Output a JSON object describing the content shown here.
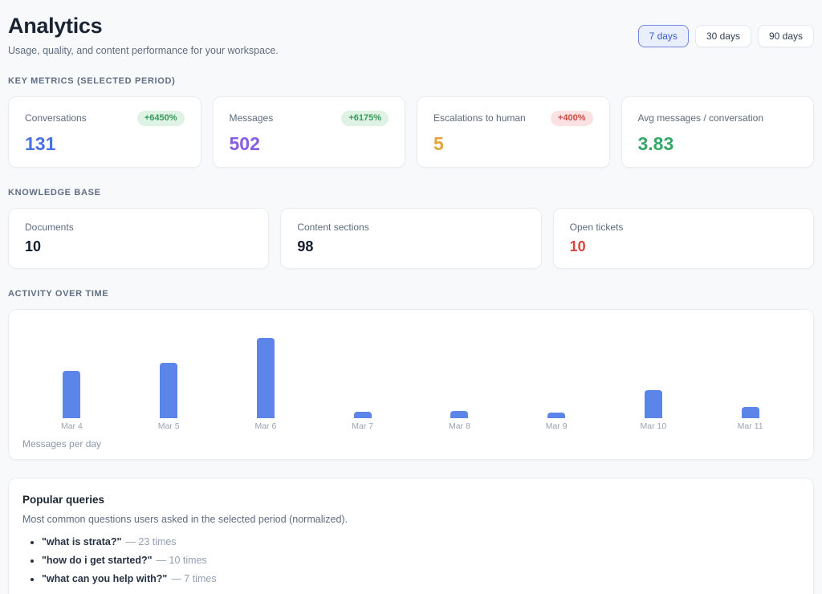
{
  "page": {
    "title": "Analytics",
    "subtitle": "Usage, quality, and content performance for your workspace."
  },
  "period_buttons": [
    {
      "label": "7 days",
      "selected": true
    },
    {
      "label": "30 days",
      "selected": false
    },
    {
      "label": "90 days",
      "selected": false
    }
  ],
  "key_metrics": {
    "heading": "Key metrics (selected period)",
    "cards": [
      {
        "label": "Conversations",
        "value": "131",
        "badge": "+6450%",
        "badge_type": "positive",
        "value_color": "#4a70e6"
      },
      {
        "label": "Messages",
        "value": "502",
        "badge": "+6175%",
        "badge_type": "positive",
        "value_color": "#875ce4"
      },
      {
        "label": "Escalations to human",
        "value": "5",
        "badge": "+400%",
        "badge_type": "negative",
        "value_color": "#e5a43b"
      },
      {
        "label": "Avg messages / conversation",
        "value": "3.83",
        "badge": null,
        "badge_type": null,
        "value_color": "#34a866"
      }
    ]
  },
  "knowledge_base": {
    "heading": "Knowledge base",
    "cards": [
      {
        "label": "Documents",
        "value": "10",
        "value_color": "#121c2b"
      },
      {
        "label": "Content sections",
        "value": "98",
        "value_color": "#121c2b"
      },
      {
        "label": "Open tickets",
        "value": "10",
        "value_color": "#d9453e"
      }
    ]
  },
  "activity": {
    "heading": "Activity over time",
    "caption": "Messages per day"
  },
  "chart_data": {
    "type": "bar",
    "title": "Activity over time",
    "ylabel": "Messages per day",
    "categories": [
      "Mar 4",
      "Mar 5",
      "Mar 6",
      "Mar 7",
      "Mar 8",
      "Mar 9",
      "Mar 10",
      "Mar 11"
    ],
    "values": [
      98,
      115,
      167,
      13,
      15,
      12,
      58,
      23
    ],
    "values_note": "estimated from bar heights; bars are unlabeled",
    "ylim": [
      0,
      167
    ],
    "grid": false,
    "legend": false,
    "bar_color": "#5c85ea"
  },
  "popular_queries": {
    "title": "Popular queries",
    "subtitle": "Most common questions users asked in the selected period (normalized).",
    "items": [
      {
        "query": "\"what is strata?\"",
        "count_text": "— 23 times"
      },
      {
        "query": "\"how do i get started?\"",
        "count_text": "— 10 times"
      },
      {
        "query": "\"what can you help with?\"",
        "count_text": "— 7 times"
      }
    ]
  },
  "colors": {
    "page_background": "#f8f9fb",
    "card_background": "#ffffff",
    "card_border": "#e9edf2",
    "badge_positive_bg": "#def3e4",
    "badge_positive_text": "#38995c",
    "badge_negative_bg": "#f9e2e1",
    "badge_negative_text": "#cc4b43",
    "selected_button_bg": "#e9effd",
    "selected_button_border": "#7288e4",
    "selected_button_text": "#3b57cf"
  }
}
